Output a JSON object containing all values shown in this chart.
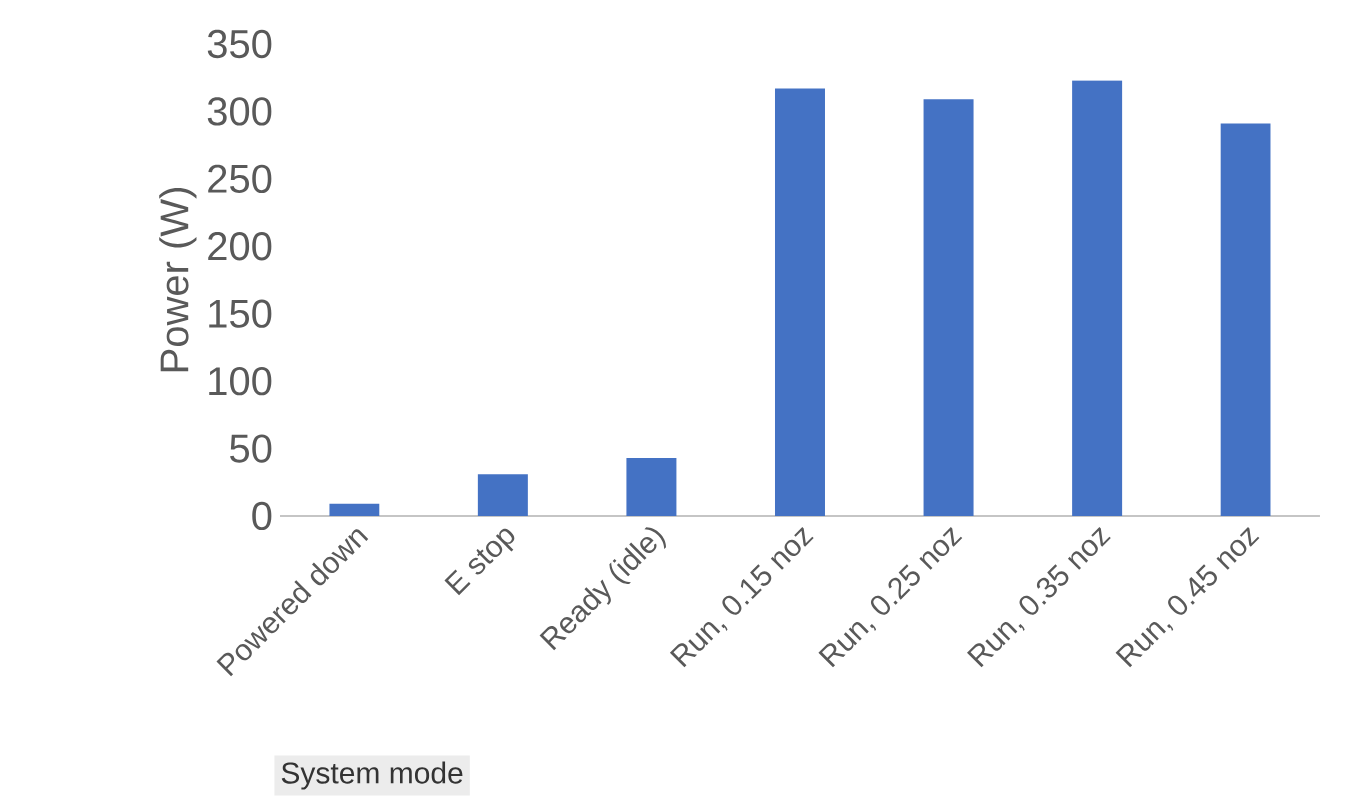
{
  "chart_data": {
    "type": "bar",
    "xlabel": "System mode",
    "ylabel": "Power (W)",
    "categories": [
      "Powered down",
      "E stop",
      "Ready (idle)",
      "Run, 0.15 noz",
      "Run, 0.25 noz",
      "Run, 0.35 noz",
      "Run, 0.45 noz"
    ],
    "values": [
      9,
      31,
      43,
      317,
      309,
      323,
      291
    ],
    "color": "#4472c4",
    "ylim": [
      0,
      350
    ],
    "yticks": [
      0,
      50,
      100,
      150,
      200,
      250,
      300,
      350
    ]
  }
}
